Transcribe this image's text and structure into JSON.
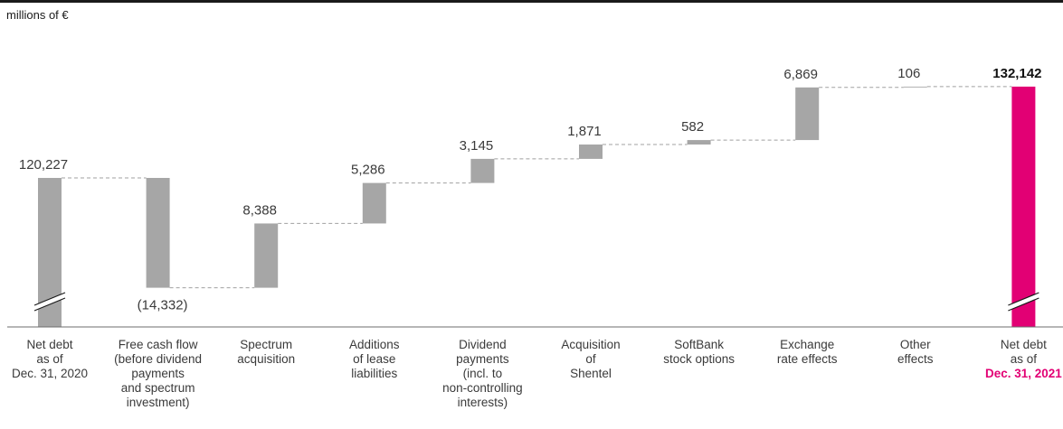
{
  "unit_label": "millions of €",
  "colors": {
    "bar": "#a6a6a6",
    "highlight": "#e20074",
    "connector": "#a0a0a0",
    "axis": "#6e6e6e"
  },
  "chart_data": {
    "type": "bar",
    "subtype": "waterfall",
    "unit": "millions of €",
    "axis_break_on_totals": true,
    "categories": [
      [
        "Net debt",
        "as of",
        "Dec. 31, 2020"
      ],
      [
        "Free cash flow",
        "(before dividend",
        "payments",
        "and spectrum",
        "investment)"
      ],
      [
        "Spectrum",
        "acquisition"
      ],
      [
        "Additions",
        "of lease",
        "liabilities"
      ],
      [
        "Dividend",
        "payments",
        "(incl. to",
        "non-controlling",
        "interests)"
      ],
      [
        "Acquisition",
        "of",
        "Shentel"
      ],
      [
        "SoftBank",
        "stock options"
      ],
      [
        "Exchange",
        "rate effects"
      ],
      [
        "Other",
        "effects"
      ],
      [
        "Net debt",
        "as of",
        "Dec. 31, 2021"
      ]
    ],
    "value_labels": [
      "120,227",
      "(14,332)",
      "8,388",
      "5,286",
      "3,145",
      "1,871",
      "582",
      "6,869",
      "106",
      "132,142"
    ],
    "bars": [
      {
        "kind": "total",
        "value": 120227
      },
      {
        "kind": "delta",
        "value": -14332
      },
      {
        "kind": "delta",
        "value": 8388
      },
      {
        "kind": "delta",
        "value": 5286
      },
      {
        "kind": "delta",
        "value": 3145
      },
      {
        "kind": "delta",
        "value": 1871
      },
      {
        "kind": "delta",
        "value": 582
      },
      {
        "kind": "delta",
        "value": 6869
      },
      {
        "kind": "delta",
        "value": 106
      },
      {
        "kind": "total",
        "value": 132142,
        "highlight": true
      }
    ]
  }
}
